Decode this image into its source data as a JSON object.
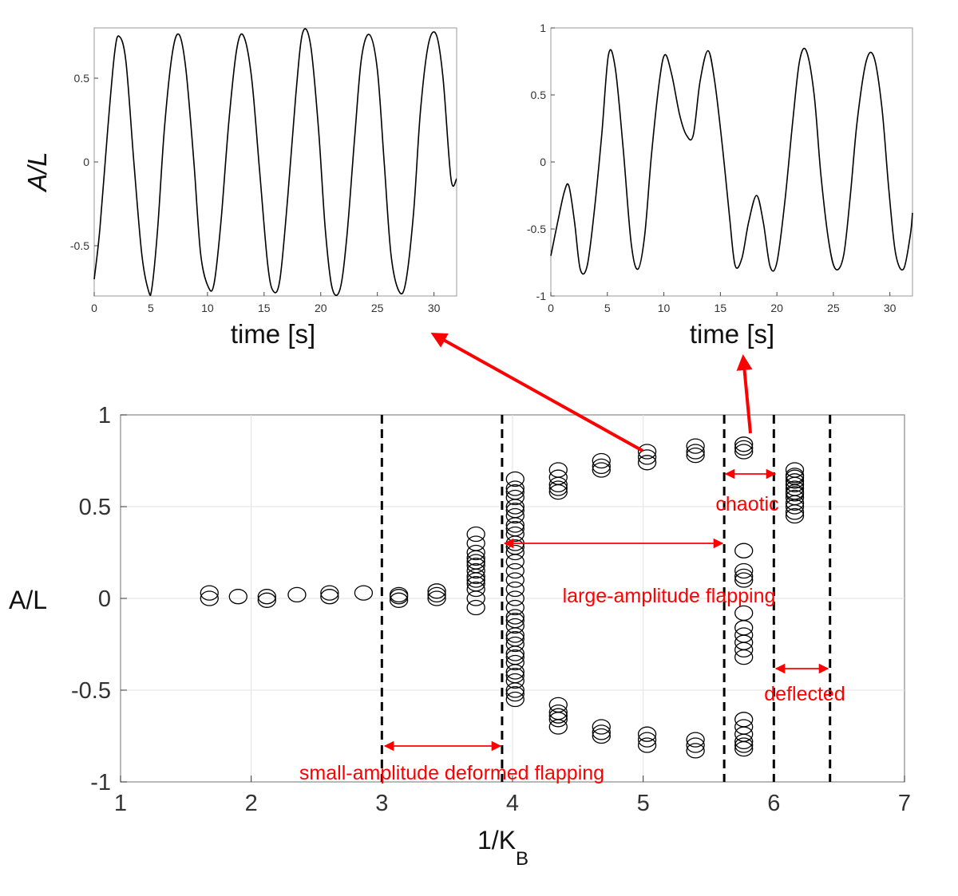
{
  "chart_data": [
    {
      "type": "line",
      "panel": "top-left",
      "xlabel": "time [s]",
      "ylabel": "A/L",
      "xlim": [
        0,
        32
      ],
      "ylim": [
        -0.8,
        0.8
      ],
      "xticks": [
        0,
        5,
        10,
        15,
        20,
        25,
        30
      ],
      "yticks": [
        -0.5,
        0,
        0.5
      ],
      "ytick_labels": [
        "-0.5",
        "0",
        "0.5"
      ],
      "grid": false,
      "series": [
        {
          "x": [
            0,
            0.5,
            1.2,
            1.8,
            2.2,
            2.8,
            3.5,
            4.2,
            4.8,
            5.1,
            5.6,
            6.2,
            6.9,
            7.5,
            8.1,
            8.8,
            9.4,
            10.1,
            10.6,
            11.2,
            11.9,
            12.6,
            13.2,
            13.9,
            14.6,
            15.3,
            15.8,
            16.4,
            17.1,
            17.8,
            18.4,
            19.1,
            19.8,
            20.4,
            21.0,
            21.7,
            22.3,
            23.0,
            23.6,
            24.3,
            25.0,
            25.6,
            26.2,
            26.9,
            27.5,
            28.2,
            28.8,
            29.5,
            30.2,
            30.8,
            31.5,
            32.0
          ],
          "y": [
            -0.7,
            -0.4,
            0.2,
            0.65,
            0.75,
            0.6,
            0.0,
            -0.55,
            -0.77,
            -0.75,
            -0.4,
            0.2,
            0.65,
            0.76,
            0.55,
            0.0,
            -0.55,
            -0.75,
            -0.72,
            -0.35,
            0.25,
            0.68,
            0.75,
            0.5,
            -0.05,
            -0.6,
            -0.77,
            -0.7,
            -0.2,
            0.4,
            0.77,
            0.7,
            0.2,
            -0.4,
            -0.75,
            -0.76,
            -0.45,
            0.15,
            0.62,
            0.76,
            0.55,
            0.0,
            -0.55,
            -0.77,
            -0.72,
            -0.3,
            0.3,
            0.7,
            0.76,
            0.5,
            -0.1,
            -0.1
          ]
        }
      ]
    },
    {
      "type": "line",
      "panel": "top-right",
      "xlabel": "time [s]",
      "ylabel": "",
      "xlim": [
        0,
        32
      ],
      "ylim": [
        -1,
        1
      ],
      "xticks": [
        0,
        5,
        10,
        15,
        20,
        25,
        30
      ],
      "yticks": [
        -1,
        -0.5,
        0,
        0.5,
        1
      ],
      "ytick_labels": [
        "-1",
        "-0.5",
        "0",
        "0.5",
        "1"
      ],
      "grid": false,
      "series": [
        {
          "x": [
            0,
            0.6,
            1.2,
            1.6,
            2.1,
            2.6,
            3.2,
            3.8,
            4.5,
            5.1,
            5.7,
            6.4,
            7.1,
            7.7,
            8.3,
            8.9,
            9.6,
            10.1,
            10.7,
            11.4,
            12.0,
            12.6,
            13.2,
            13.9,
            14.5,
            15.2,
            15.8,
            16.3,
            16.9,
            17.5,
            18.2,
            18.8,
            19.4,
            20.0,
            20.7,
            21.4,
            22.0,
            22.6,
            23.3,
            23.9,
            24.6,
            25.2,
            25.9,
            26.5,
            27.1,
            27.9,
            28.6,
            29.3,
            29.9,
            30.5,
            31.2,
            31.8,
            32.0
          ],
          "y": [
            -0.7,
            -0.45,
            -0.22,
            -0.18,
            -0.45,
            -0.8,
            -0.78,
            -0.4,
            0.2,
            0.8,
            0.7,
            0.1,
            -0.6,
            -0.8,
            -0.55,
            0.05,
            0.6,
            0.8,
            0.65,
            0.35,
            0.2,
            0.2,
            0.6,
            0.83,
            0.6,
            0.1,
            -0.4,
            -0.77,
            -0.72,
            -0.45,
            -0.25,
            -0.45,
            -0.78,
            -0.75,
            -0.3,
            0.3,
            0.75,
            0.83,
            0.5,
            -0.1,
            -0.6,
            -0.8,
            -0.7,
            -0.25,
            0.3,
            0.75,
            0.78,
            0.4,
            -0.2,
            -0.68,
            -0.8,
            -0.55,
            -0.38
          ]
        }
      ]
    },
    {
      "type": "scatter",
      "panel": "bottom",
      "xlabel": "1/K",
      "xlabel_subscript": "B",
      "ylabel": "A/L",
      "xlim": [
        1,
        7
      ],
      "ylim": [
        -1,
        1
      ],
      "xticks": [
        1,
        2,
        3,
        4,
        5,
        6,
        7
      ],
      "yticks": [
        -1,
        -0.5,
        0,
        0.5,
        1
      ],
      "ytick_labels": [
        "-1",
        "-0.5",
        "0",
        "0.5",
        "1"
      ],
      "grid": true,
      "series": [
        {
          "x": [
            1.68,
            1.68,
            1.9,
            2.12,
            2.12,
            2.35,
            2.6,
            2.6,
            2.86,
            3.13,
            3.13,
            3.13,
            3.42,
            3.42,
            3.42,
            3.72,
            3.72,
            3.72,
            3.72,
            3.72,
            3.72,
            3.72,
            3.72,
            3.72,
            3.72,
            3.72,
            3.72,
            3.72,
            4.02,
            4.02,
            4.02,
            4.02,
            4.02,
            4.02,
            4.02,
            4.02,
            4.02,
            4.02,
            4.02,
            4.02,
            4.02,
            4.02,
            4.02,
            4.02,
            4.02,
            4.02,
            4.02,
            4.02,
            4.02,
            4.02,
            4.02,
            4.02,
            4.02,
            4.02,
            4.02,
            4.02,
            4.02,
            4.02,
            4.02,
            4.02,
            4.02,
            4.02,
            4.35,
            4.35,
            4.35,
            4.35,
            4.35,
            4.35,
            4.35,
            4.35,
            4.35,
            4.35,
            4.68,
            4.68,
            4.68,
            4.68,
            4.68,
            4.68,
            5.03,
            5.03,
            5.03,
            5.03,
            5.03,
            5.03,
            5.4,
            5.4,
            5.4,
            5.4,
            5.4,
            5.4,
            5.77,
            5.77,
            5.77,
            5.77,
            5.77,
            5.77,
            5.77,
            5.77,
            5.77,
            5.77,
            5.77,
            5.77,
            5.77,
            5.77,
            5.77,
            5.77,
            5.77,
            5.77,
            5.77,
            6.16,
            6.16,
            6.16,
            6.16,
            6.16,
            6.16,
            6.16,
            6.16,
            6.16,
            6.16,
            6.16,
            6.16,
            6.16
          ],
          "y": [
            0.0,
            0.03,
            0.01,
            -0.01,
            0.01,
            0.02,
            0.01,
            0.03,
            0.03,
            -0.01,
            0.01,
            0.02,
            0.0,
            0.02,
            0.04,
            0.35,
            0.3,
            0.25,
            0.2,
            0.15,
            0.1,
            0.05,
            0.0,
            -0.05,
            0.18,
            0.22,
            0.08,
            0.12,
            0.65,
            0.6,
            0.55,
            0.5,
            0.45,
            0.4,
            0.35,
            0.3,
            0.25,
            0.2,
            0.15,
            0.1,
            0.05,
            0.0,
            -0.05,
            -0.1,
            -0.15,
            -0.2,
            -0.25,
            -0.3,
            -0.35,
            -0.4,
            -0.45,
            -0.5,
            -0.55,
            0.58,
            0.48,
            0.38,
            0.28,
            -0.12,
            -0.22,
            -0.32,
            -0.42,
            -0.52,
            0.7,
            0.66,
            0.62,
            0.58,
            0.6,
            -0.58,
            -0.62,
            -0.66,
            -0.7,
            -0.64,
            0.75,
            0.72,
            0.7,
            -0.7,
            -0.73,
            -0.75,
            0.8,
            0.77,
            0.74,
            -0.74,
            -0.77,
            -0.8,
            0.83,
            0.8,
            0.78,
            -0.77,
            -0.8,
            -0.83,
            0.84,
            0.82,
            0.8,
            0.26,
            0.15,
            0.12,
            0.1,
            -0.08,
            -0.16,
            -0.2,
            -0.24,
            -0.28,
            -0.32,
            -0.7,
            -0.74,
            -0.78,
            -0.8,
            -0.82,
            -0.66,
            0.7,
            0.67,
            0.64,
            0.62,
            0.6,
            0.57,
            0.55,
            0.52,
            0.5,
            0.47,
            0.45,
            0.66,
            0.58
          ]
        }
      ],
      "vlines": [
        3.0,
        3.92,
        5.62,
        6.0,
        6.43
      ],
      "annotations": {
        "small": "small-amplitude deformed flapping",
        "large": "large-amplitude flapping",
        "chaotic": "chaotic",
        "deflected": "deflected"
      }
    }
  ]
}
